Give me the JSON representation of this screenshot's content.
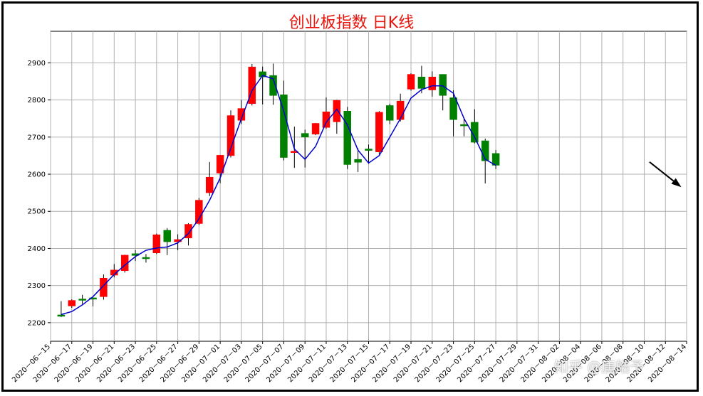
{
  "chart_data": {
    "type": "candlestick",
    "title": "创业板指数 日K线",
    "xlabel": "",
    "ylabel": "",
    "ylim": [
      2150,
      2985
    ],
    "y_ticks": [
      2200,
      2300,
      2400,
      2500,
      2600,
      2700,
      2800,
      2900
    ],
    "x_range": [
      "2020-06-15",
      "2020-08-14"
    ],
    "x_ticks": [
      "2020-06-15",
      "2020-06-17",
      "2020-06-19",
      "2020-06-21",
      "2020-06-23",
      "2020-06-25",
      "2020-06-27",
      "2020-06-29",
      "2020-07-01",
      "2020-07-03",
      "2020-07-05",
      "2020-07-07",
      "2020-07-09",
      "2020-07-11",
      "2020-07-13",
      "2020-07-15",
      "2020-07-17",
      "2020-07-19",
      "2020-07-21",
      "2020-07-23",
      "2020-07-25",
      "2020-07-27",
      "2020-07-29",
      "2020-07-31",
      "2020-08-02",
      "2020-08-04",
      "2020-08-06",
      "2020-08-08",
      "2020-08-10",
      "2020-08-12",
      "2020-08-14"
    ],
    "x_tick_labels": [
      "2020－06－15",
      "2020－06－17",
      "2020－06－19",
      "2020－06－21",
      "2020－06－23",
      "2020－06－25",
      "2020－06－27",
      "2020－06－29",
      "2020－07－01",
      "2020－07－03",
      "2020－07－05",
      "2020－07－07",
      "2020－07－09",
      "2020－07－11",
      "2020－07－13",
      "2020－07－15",
      "2020－07－17",
      "2020－07－19",
      "2020－07－21",
      "2020－07－23",
      "2020－07－25",
      "2020－07－27",
      "2020－07－29",
      "2020－07－31",
      "2020－08－02",
      "2020－08－04",
      "2020－08－06",
      "2020－08－08",
      "2020－08－10",
      "2020－08－12",
      "2020－08－14"
    ],
    "grid": true,
    "up_color": "#ff0000",
    "down_color": "#008000",
    "line_color": "#0000cc",
    "arrow_color": "#000000",
    "candles": [
      {
        "date": "2020-06-16",
        "open": 2221,
        "close": 2218,
        "high": 2258,
        "low": 2215
      },
      {
        "date": "2020-06-17",
        "open": 2245,
        "close": 2260,
        "high": 2263,
        "low": 2240
      },
      {
        "date": "2020-06-18",
        "open": 2264,
        "close": 2262,
        "high": 2275,
        "low": 2250
      },
      {
        "date": "2020-06-19",
        "open": 2267,
        "close": 2265,
        "high": 2268,
        "low": 2244
      },
      {
        "date": "2020-06-20",
        "open": 2270,
        "close": 2320,
        "high": 2330,
        "low": 2262
      },
      {
        "date": "2020-06-21",
        "open": 2328,
        "close": 2342,
        "high": 2358,
        "low": 2322
      },
      {
        "date": "2020-06-22",
        "open": 2340,
        "close": 2382,
        "high": 2383,
        "low": 2335
      },
      {
        "date": "2020-06-23",
        "open": 2386,
        "close": 2381,
        "high": 2396,
        "low": 2366
      },
      {
        "date": "2020-06-24",
        "open": 2376,
        "close": 2373,
        "high": 2385,
        "low": 2362
      },
      {
        "date": "2020-06-25",
        "open": 2388,
        "close": 2437,
        "high": 2440,
        "low": 2385
      },
      {
        "date": "2020-06-26",
        "open": 2449,
        "close": 2418,
        "high": 2455,
        "low": 2382
      },
      {
        "date": "2020-06-27",
        "open": 2418,
        "close": 2424,
        "high": 2438,
        "low": 2395
      },
      {
        "date": "2020-06-28",
        "open": 2428,
        "close": 2465,
        "high": 2468,
        "low": 2408
      },
      {
        "date": "2020-06-29",
        "open": 2467,
        "close": 2530,
        "high": 2536,
        "low": 2463
      },
      {
        "date": "2020-06-30",
        "open": 2550,
        "close": 2592,
        "high": 2633,
        "low": 2541
      },
      {
        "date": "2020-07-01",
        "open": 2603,
        "close": 2651,
        "high": 2652,
        "low": 2576
      },
      {
        "date": "2020-07-02",
        "open": 2650,
        "close": 2758,
        "high": 2772,
        "low": 2645
      },
      {
        "date": "2020-07-03",
        "open": 2745,
        "close": 2777,
        "high": 2800,
        "low": 2735
      },
      {
        "date": "2020-07-04",
        "open": 2790,
        "close": 2889,
        "high": 2897,
        "low": 2785
      },
      {
        "date": "2020-07-05",
        "open": 2876,
        "close": 2862,
        "high": 2890,
        "low": 2788
      },
      {
        "date": "2020-07-06",
        "open": 2866,
        "close": 2812,
        "high": 2898,
        "low": 2787
      },
      {
        "date": "2020-07-07",
        "open": 2814,
        "close": 2645,
        "high": 2852,
        "low": 2637
      },
      {
        "date": "2020-07-08",
        "open": 2659,
        "close": 2662,
        "high": 2728,
        "low": 2617
      },
      {
        "date": "2020-07-09",
        "open": 2710,
        "close": 2700,
        "high": 2720,
        "low": 2618
      },
      {
        "date": "2020-07-10",
        "open": 2708,
        "close": 2737,
        "high": 2738,
        "low": 2705
      },
      {
        "date": "2020-07-11",
        "open": 2726,
        "close": 2768,
        "high": 2807,
        "low": 2722
      },
      {
        "date": "2020-07-12",
        "open": 2741,
        "close": 2799,
        "high": 2800,
        "low": 2709
      },
      {
        "date": "2020-07-13",
        "open": 2770,
        "close": 2626,
        "high": 2781,
        "low": 2614
      },
      {
        "date": "2020-07-14",
        "open": 2640,
        "close": 2632,
        "high": 2670,
        "low": 2606
      },
      {
        "date": "2020-07-15",
        "open": 2668,
        "close": 2664,
        "high": 2680,
        "low": 2628
      },
      {
        "date": "2020-07-16",
        "open": 2660,
        "close": 2767,
        "high": 2770,
        "low": 2653
      },
      {
        "date": "2020-07-17",
        "open": 2785,
        "close": 2745,
        "high": 2790,
        "low": 2735
      },
      {
        "date": "2020-07-18",
        "open": 2747,
        "close": 2797,
        "high": 2817,
        "low": 2742
      },
      {
        "date": "2020-07-19",
        "open": 2829,
        "close": 2869,
        "high": 2872,
        "low": 2825
      },
      {
        "date": "2020-07-20",
        "open": 2862,
        "close": 2831,
        "high": 2892,
        "low": 2818
      },
      {
        "date": "2020-07-21",
        "open": 2827,
        "close": 2862,
        "high": 2877,
        "low": 2809
      },
      {
        "date": "2020-07-22",
        "open": 2869,
        "close": 2812,
        "high": 2869,
        "low": 2772
      },
      {
        "date": "2020-07-23",
        "open": 2806,
        "close": 2747,
        "high": 2826,
        "low": 2702
      },
      {
        "date": "2020-07-24",
        "open": 2734,
        "close": 2732,
        "high": 2753,
        "low": 2702
      },
      {
        "date": "2020-07-25",
        "open": 2740,
        "close": 2686,
        "high": 2775,
        "low": 2683
      },
      {
        "date": "2020-07-26",
        "open": 2690,
        "close": 2636,
        "high": 2696,
        "low": 2575
      },
      {
        "date": "2020-07-27",
        "open": 2656,
        "close": 2624,
        "high": 2665,
        "low": 2614
      }
    ],
    "ma_line": {
      "x": [
        "2020-06-16",
        "2020-06-17",
        "2020-06-18",
        "2020-06-19",
        "2020-06-20",
        "2020-06-21",
        "2020-06-22",
        "2020-06-23",
        "2020-06-24",
        "2020-06-25",
        "2020-06-26",
        "2020-06-27",
        "2020-06-28",
        "2020-06-29",
        "2020-06-30",
        "2020-07-01",
        "2020-07-02",
        "2020-07-03",
        "2020-07-04",
        "2020-07-05",
        "2020-07-06",
        "2020-07-07",
        "2020-07-08",
        "2020-07-09",
        "2020-07-10",
        "2020-07-11",
        "2020-07-12",
        "2020-07-13",
        "2020-07-14",
        "2020-07-15",
        "2020-07-16",
        "2020-07-17",
        "2020-07-18",
        "2020-07-19",
        "2020-07-20",
        "2020-07-21",
        "2020-07-22",
        "2020-07-23",
        "2020-07-24",
        "2020-07-25",
        "2020-07-26",
        "2020-07-27"
      ],
      "y": [
        2222,
        2230,
        2248,
        2270,
        2300,
        2330,
        2355,
        2378,
        2395,
        2401,
        2404,
        2415,
        2440,
        2480,
        2530,
        2590,
        2670,
        2750,
        2825,
        2866,
        2857,
        2770,
        2668,
        2640,
        2675,
        2740,
        2775,
        2733,
        2665,
        2630,
        2650,
        2700,
        2750,
        2805,
        2828,
        2838,
        2838,
        2818,
        2750,
        2700,
        2640,
        2624
      ]
    },
    "arrow": {
      "from": [
        "2020-08-10T12",
        2633
      ],
      "to": [
        "2020-08-13T12",
        2565
      ]
    }
  },
  "watermark": "知乎 @唐皓予"
}
